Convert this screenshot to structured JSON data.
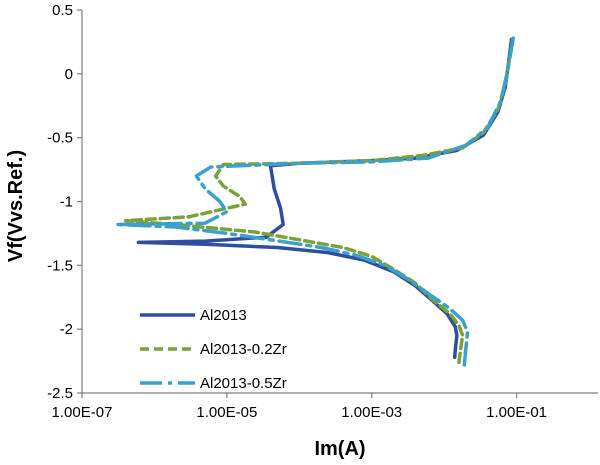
{
  "chart_data": {
    "type": "line",
    "title": "",
    "xlabel": "Im(A)",
    "ylabel": "Vf(Vvs.Ref.)",
    "xscale": "log",
    "xlim": [
      1e-07,
      1
    ],
    "ylim": [
      -2.5,
      0.5
    ],
    "x_tick_labels": [
      "1.00E-07",
      "1.00E-05",
      "1.00E-03",
      "1.00E-01"
    ],
    "y_tick_labels": [
      "0.5",
      "0",
      "-0.5",
      "-1",
      "-1.5",
      "-2",
      "-2.5"
    ],
    "grid": false,
    "legend_position": "bottom-left",
    "series": [
      {
        "name": "Al2013",
        "color": "#2e4fa0",
        "dash": "solid",
        "points": [
          [
            0.014,
            -2.22
          ],
          [
            0.0145,
            -2.12
          ],
          [
            0.015,
            -2.05
          ],
          [
            0.0142,
            -1.98
          ],
          [
            0.011,
            -1.88
          ],
          [
            0.007,
            -1.78
          ],
          [
            0.004,
            -1.66
          ],
          [
            0.002,
            -1.55
          ],
          [
            0.0008,
            -1.46
          ],
          [
            0.00025,
            -1.4
          ],
          [
            5e-05,
            -1.36
          ],
          [
            5e-06,
            -1.335
          ],
          [
            6e-07,
            -1.32
          ],
          [
            5e-06,
            -1.31
          ],
          [
            3.5e-05,
            -1.28
          ],
          [
            6e-05,
            -1.18
          ],
          [
            5.5e-05,
            -1.05
          ],
          [
            4.5e-05,
            -0.9
          ],
          [
            4e-05,
            -0.72
          ],
          [
            0.0001,
            -0.7
          ],
          [
            0.001,
            -0.68
          ],
          [
            0.004,
            -0.66
          ],
          [
            0.015,
            -0.6
          ],
          [
            0.035,
            -0.48
          ],
          [
            0.055,
            -0.3
          ],
          [
            0.07,
            -0.1
          ],
          [
            0.08,
            0.15
          ],
          [
            0.085,
            0.27
          ]
        ]
      },
      {
        "name": "Al2013-0.2Zr",
        "color": "#7aa237",
        "dash": "dashed",
        "points": [
          [
            0.016,
            -2.26
          ],
          [
            0.017,
            -2.15
          ],
          [
            0.018,
            -2.05
          ],
          [
            0.016,
            -1.97
          ],
          [
            0.012,
            -1.88
          ],
          [
            0.007,
            -1.77
          ],
          [
            0.004,
            -1.64
          ],
          [
            0.002,
            -1.53
          ],
          [
            0.001,
            -1.43
          ],
          [
            0.0004,
            -1.36
          ],
          [
            0.0001,
            -1.3
          ],
          [
            2.5e-05,
            -1.24
          ],
          [
            3e-06,
            -1.19
          ],
          [
            4e-07,
            -1.15
          ],
          [
            3e-06,
            -1.12
          ],
          [
            1.8e-05,
            -1.02
          ],
          [
            1.5e-05,
            -0.96
          ],
          [
            9e-06,
            -0.88
          ],
          [
            7e-06,
            -0.8
          ],
          [
            9e-06,
            -0.71
          ],
          [
            0.0001,
            -0.7
          ],
          [
            0.001,
            -0.68
          ],
          [
            0.005,
            -0.64
          ],
          [
            0.018,
            -0.58
          ],
          [
            0.035,
            -0.46
          ],
          [
            0.055,
            -0.28
          ],
          [
            0.07,
            -0.08
          ],
          [
            0.082,
            0.15
          ],
          [
            0.088,
            0.27
          ]
        ]
      },
      {
        "name": "Al2013-0.5Zr",
        "color": "#3ba0cc",
        "dash": "long-dash",
        "points": [
          [
            0.019,
            -2.28
          ],
          [
            0.02,
            -2.15
          ],
          [
            0.021,
            -2.02
          ],
          [
            0.018,
            -1.93
          ],
          [
            0.012,
            -1.84
          ],
          [
            0.006,
            -1.72
          ],
          [
            0.003,
            -1.6
          ],
          [
            0.0015,
            -1.5
          ],
          [
            0.0006,
            -1.42
          ],
          [
            0.0002,
            -1.36
          ],
          [
            4e-05,
            -1.3
          ],
          [
            1e-05,
            -1.25
          ],
          [
            2e-06,
            -1.2
          ],
          [
            3e-07,
            -1.18
          ],
          [
            5e-06,
            -1.17
          ],
          [
            1e-05,
            -1.08
          ],
          [
            8e-06,
            -1.0
          ],
          [
            5e-06,
            -0.9
          ],
          [
            3.8e-06,
            -0.8
          ],
          [
            6e-06,
            -0.73
          ],
          [
            0.0001,
            -0.7
          ],
          [
            0.001,
            -0.69
          ],
          [
            0.006,
            -0.66
          ],
          [
            0.02,
            -0.56
          ],
          [
            0.04,
            -0.42
          ],
          [
            0.06,
            -0.22
          ],
          [
            0.075,
            0.02
          ],
          [
            0.085,
            0.2
          ],
          [
            0.09,
            0.28
          ]
        ]
      }
    ]
  }
}
